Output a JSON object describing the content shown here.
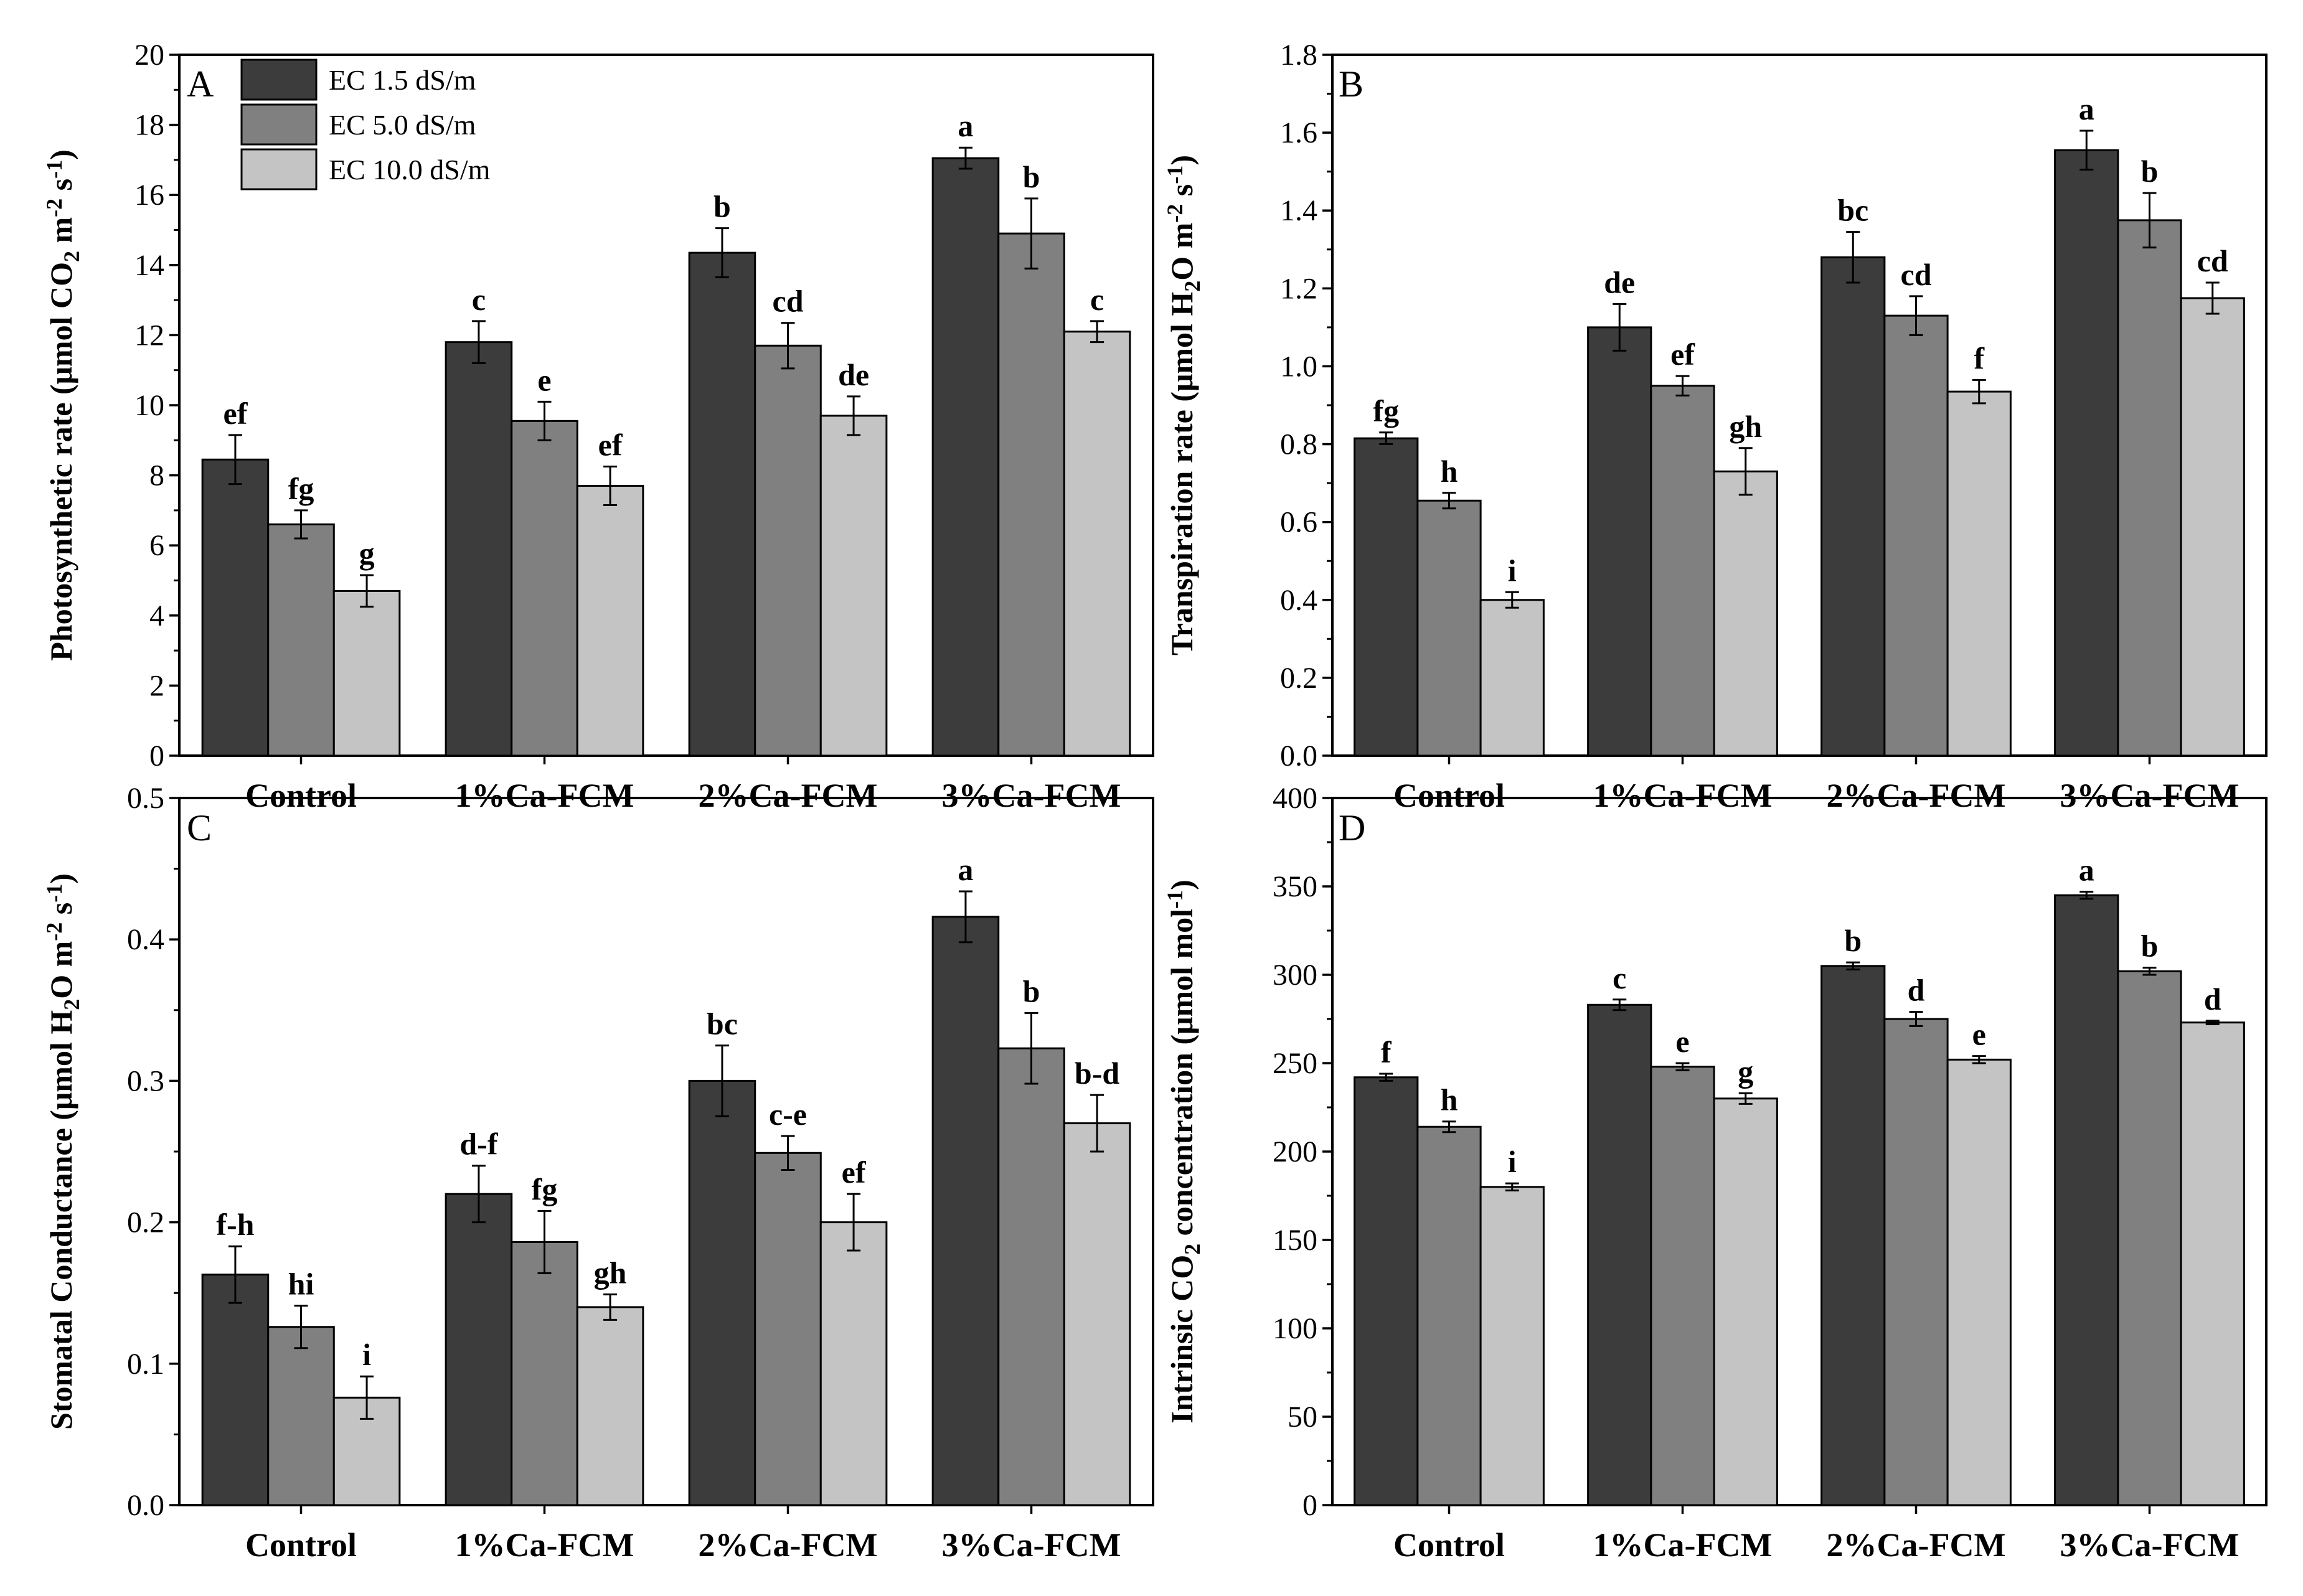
{
  "colors": {
    "s0": "#3c3c3c",
    "s1": "#808080",
    "s2": "#c4c4c4"
  },
  "categories": [
    "Control",
    "1%Ca-FCM",
    "2%Ca-FCM",
    "3%Ca-FCM"
  ],
  "legend": [
    "EC 1.5 dS/m",
    "EC 5.0 dS/m",
    "EC 10.0 dS/m"
  ],
  "chart_data": [
    {
      "type": "bar",
      "panel_label": "A",
      "ylabel": "Photosynthetic rate (μmol CO2 m-2 s-1)",
      "ylim": [
        0,
        20
      ],
      "ytick_step": 2,
      "ytick_decimals": 0,
      "categories": [
        "Control",
        "1%Ca-FCM",
        "2%Ca-FCM",
        "3%Ca-FCM"
      ],
      "legend_position": "top-left",
      "series": [
        {
          "name": "EC 1.5 dS/m",
          "values": [
            8.45,
            11.8,
            14.35,
            17.05
          ],
          "errors": [
            0.7,
            0.6,
            0.7,
            0.3
          ],
          "letters": [
            "ef",
            "c",
            "b",
            "a"
          ]
        },
        {
          "name": "EC 5.0 dS/m",
          "values": [
            6.6,
            9.55,
            11.7,
            14.9
          ],
          "errors": [
            0.4,
            0.55,
            0.65,
            1.0
          ],
          "letters": [
            "fg",
            "e",
            "cd",
            "b"
          ]
        },
        {
          "name": "EC 10.0 dS/m",
          "values": [
            4.7,
            7.7,
            9.7,
            12.1
          ],
          "errors": [
            0.45,
            0.55,
            0.55,
            0.3
          ],
          "letters": [
            "g",
            "ef",
            "de",
            "c"
          ]
        }
      ]
    },
    {
      "type": "bar",
      "panel_label": "B",
      "ylabel": "Transpiration rate (μmol H2O m-2 s-1)",
      "ylim": [
        0,
        1.8
      ],
      "ytick_step": 0.2,
      "ytick_decimals": 1,
      "categories": [
        "Control",
        "1%Ca-FCM",
        "2%Ca-FCM",
        "3%Ca-FCM"
      ],
      "series": [
        {
          "name": "EC 1.5 dS/m",
          "values": [
            0.815,
            1.1,
            1.28,
            1.555
          ],
          "errors": [
            0.015,
            0.06,
            0.065,
            0.05
          ],
          "letters": [
            "fg",
            "de",
            "bc",
            "a"
          ]
        },
        {
          "name": "EC 5.0 dS/m",
          "values": [
            0.655,
            0.95,
            1.13,
            1.375
          ],
          "errors": [
            0.02,
            0.025,
            0.05,
            0.07
          ],
          "letters": [
            "h",
            "ef",
            "cd",
            "b"
          ]
        },
        {
          "name": "EC 10.0 dS/m",
          "values": [
            0.4,
            0.73,
            0.935,
            1.175
          ],
          "errors": [
            0.02,
            0.06,
            0.03,
            0.04
          ],
          "letters": [
            "i",
            "gh",
            "f",
            "cd"
          ]
        }
      ]
    },
    {
      "type": "bar",
      "panel_label": "C",
      "ylabel": "Stomatal Conductance (μmol H2O m-2 s-1)",
      "ylim": [
        0,
        0.5
      ],
      "ytick_step": 0.1,
      "ytick_decimals": 1,
      "categories": [
        "Control",
        "1%Ca-FCM",
        "2%Ca-FCM",
        "3%Ca-FCM"
      ],
      "series": [
        {
          "name": "EC 1.5 dS/m",
          "values": [
            0.163,
            0.22,
            0.3,
            0.416
          ],
          "errors": [
            0.02,
            0.02,
            0.025,
            0.018
          ],
          "letters": [
            "f-h",
            "d-f",
            "bc",
            "a"
          ]
        },
        {
          "name": "EC 5.0 dS/m",
          "values": [
            0.126,
            0.186,
            0.249,
            0.323
          ],
          "errors": [
            0.015,
            0.022,
            0.012,
            0.025
          ],
          "letters": [
            "hi",
            "fg",
            "c-e",
            "b"
          ]
        },
        {
          "name": "EC 10.0 dS/m",
          "values": [
            0.076,
            0.14,
            0.2,
            0.27
          ],
          "errors": [
            0.015,
            0.009,
            0.02,
            0.02
          ],
          "letters": [
            "i",
            "gh",
            "ef",
            "b-d"
          ]
        }
      ]
    },
    {
      "type": "bar",
      "panel_label": "D",
      "ylabel": "Intrinsic CO2 concentration (μmol mol-1)",
      "ylim": [
        0,
        400
      ],
      "ytick_step": 50,
      "ytick_decimals": 0,
      "categories": [
        "Control",
        "1%Ca-FCM",
        "2%Ca-FCM",
        "3%Ca-FCM"
      ],
      "series": [
        {
          "name": "EC 1.5 dS/m",
          "values": [
            242,
            283,
            305,
            345
          ],
          "errors": [
            2,
            3,
            2,
            2
          ],
          "letters": [
            "f",
            "c",
            "b",
            "a"
          ]
        },
        {
          "name": "EC 5.0 dS/m",
          "values": [
            214,
            248,
            275,
            302
          ],
          "errors": [
            3,
            2,
            4,
            2
          ],
          "letters": [
            "h",
            "e",
            "d",
            "b"
          ]
        },
        {
          "name": "EC 10.0 dS/m",
          "values": [
            180,
            230,
            252,
            273
          ],
          "errors": [
            2,
            3,
            2,
            1
          ],
          "letters": [
            "i",
            "g",
            "e",
            "d"
          ]
        }
      ]
    }
  ]
}
